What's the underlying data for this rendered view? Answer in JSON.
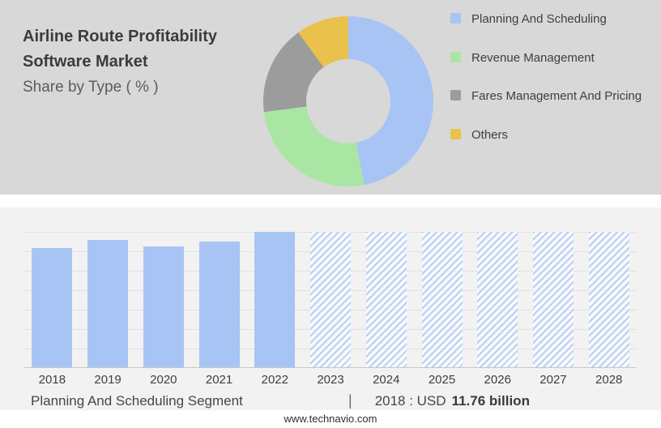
{
  "header": {
    "title_line1": "Airline Route Profitability",
    "title_line2": "Software Market",
    "subtitle": "Share by Type ( % )"
  },
  "legend": {
    "items": [
      {
        "label": "Planning And Scheduling",
        "color": "#a7c4f4"
      },
      {
        "label": "Revenue Management",
        "color": "#a9e6a3"
      },
      {
        "label": "Fares Management And Pricing",
        "color": "#9c9c9c"
      },
      {
        "label": "Others",
        "color": "#e9c14b"
      }
    ]
  },
  "chart_data": [
    {
      "type": "pie",
      "donut": true,
      "title": "Share by Type ( % )",
      "labels": [
        "Planning And Scheduling",
        "Revenue Management",
        "Fares Management And Pricing",
        "Others"
      ],
      "values_pct": [
        47,
        26,
        17,
        10
      ],
      "colors": [
        "#a7c4f4",
        "#a9e6a3",
        "#9c9c9c",
        "#e9c14b"
      ],
      "legend_position": "right",
      "note": "segment shares estimated from arc angles; no numeric labels shown in image"
    },
    {
      "type": "bar",
      "title": "Planning And Scheduling Segment",
      "categories": [
        "2018",
        "2019",
        "2020",
        "2021",
        "2022",
        "2023",
        "2024",
        "2025",
        "2026",
        "2027",
        "2028"
      ],
      "bars": [
        {
          "year": "2018",
          "height_pct": 88,
          "style": "solid"
        },
        {
          "year": "2019",
          "height_pct": 94,
          "style": "solid"
        },
        {
          "year": "2020",
          "height_pct": 89,
          "style": "solid"
        },
        {
          "year": "2021",
          "height_pct": 93,
          "style": "solid"
        },
        {
          "year": "2022",
          "height_pct": 100,
          "style": "solid"
        },
        {
          "year": "2023",
          "height_pct": 100,
          "style": "hatched"
        },
        {
          "year": "2024",
          "height_pct": 100,
          "style": "hatched"
        },
        {
          "year": "2025",
          "height_pct": 100,
          "style": "hatched"
        },
        {
          "year": "2026",
          "height_pct": 100,
          "style": "hatched"
        },
        {
          "year": "2027",
          "height_pct": 100,
          "style": "hatched"
        },
        {
          "year": "2028",
          "height_pct": 100,
          "style": "hatched"
        },
        {
          "year": "_",
          "height_pct": 0,
          "style": "none"
        }
      ],
      "solid_color": "#a7c4f4",
      "hatch_color": "#b7d0f7",
      "known_values": {
        "2018": "USD 11.76 billion"
      },
      "grid": true,
      "legend_position": "none",
      "note": "2023-2028 drawn as full-height hatched forecast placeholders; y-axis has gridlines but no tick labels"
    }
  ],
  "caption": {
    "segment_label": "Planning And Scheduling Segment",
    "separator": "|",
    "value_prefix": "2018 : USD",
    "value_bold": "11.76 billion"
  },
  "footer": {
    "url": "www.technavio.com"
  }
}
